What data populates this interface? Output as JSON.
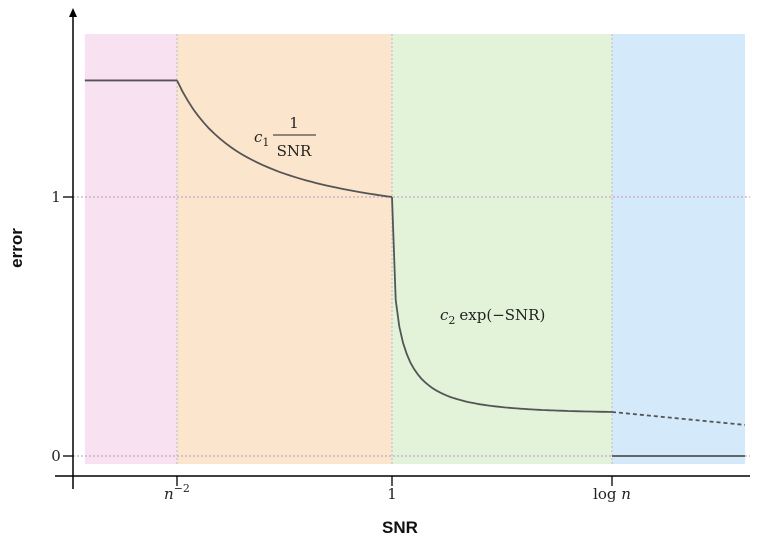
{
  "chart_data": {
    "type": "line",
    "title": "",
    "xlabel": "SNR",
    "ylabel": "error",
    "x_ticks": [
      {
        "pos": 1,
        "label": "n",
        "sup": "−2"
      },
      {
        "pos": 2,
        "label": "1"
      },
      {
        "pos": 3,
        "label": "log n"
      }
    ],
    "y_ticks": [
      {
        "value": 0,
        "label": "0"
      },
      {
        "value": 1,
        "label": "1"
      }
    ],
    "xlim": [
      0,
      4
    ],
    "ylim": [
      -0.08,
      1.65
    ],
    "regions": [
      {
        "x0": 0.05,
        "x1": 1.0,
        "color": "#f8e1f0"
      },
      {
        "x0": 1.0,
        "x1": 2.0,
        "color": "#fbe5cc"
      },
      {
        "x0": 2.0,
        "x1": 3.0,
        "color": "#e2f3da"
      },
      {
        "x0": 3.0,
        "x1": 3.95,
        "color": "#d4eafb"
      }
    ],
    "region_boundaries": [
      1,
      2,
      3
    ],
    "guide_lines": [
      0,
      1
    ],
    "series": [
      {
        "style": "solid",
        "x": [
          0.05,
          1.0
        ],
        "y": [
          1.45,
          1.45
        ]
      },
      {
        "style": "solid",
        "form": "reciprocal",
        "x": [
          1.0,
          2.0
        ],
        "y": [
          1.45,
          1.0
        ]
      },
      {
        "style": "solid",
        "form": "decay",
        "x": [
          2.0,
          3.0
        ],
        "y": [
          1.0,
          0.17
        ]
      },
      {
        "style": "dashed",
        "x": [
          3.0,
          3.95
        ],
        "y": [
          0.17,
          0.12
        ]
      },
      {
        "style": "solid",
        "x": [
          3.0,
          3.95
        ],
        "y": [
          0.0,
          0.0
        ]
      }
    ],
    "annotations": [
      {
        "id": "reciprocal",
        "coef": "c",
        "sub": "1",
        "num": "1",
        "den": "SNR"
      },
      {
        "id": "exp",
        "coef": "c",
        "sub": "2",
        "text": "exp(−SNR)"
      }
    ],
    "colors": {
      "curve": "#555555",
      "guide": "#c9a8c9",
      "boundary": "#c8c8c8",
      "axis": "#000000"
    }
  }
}
